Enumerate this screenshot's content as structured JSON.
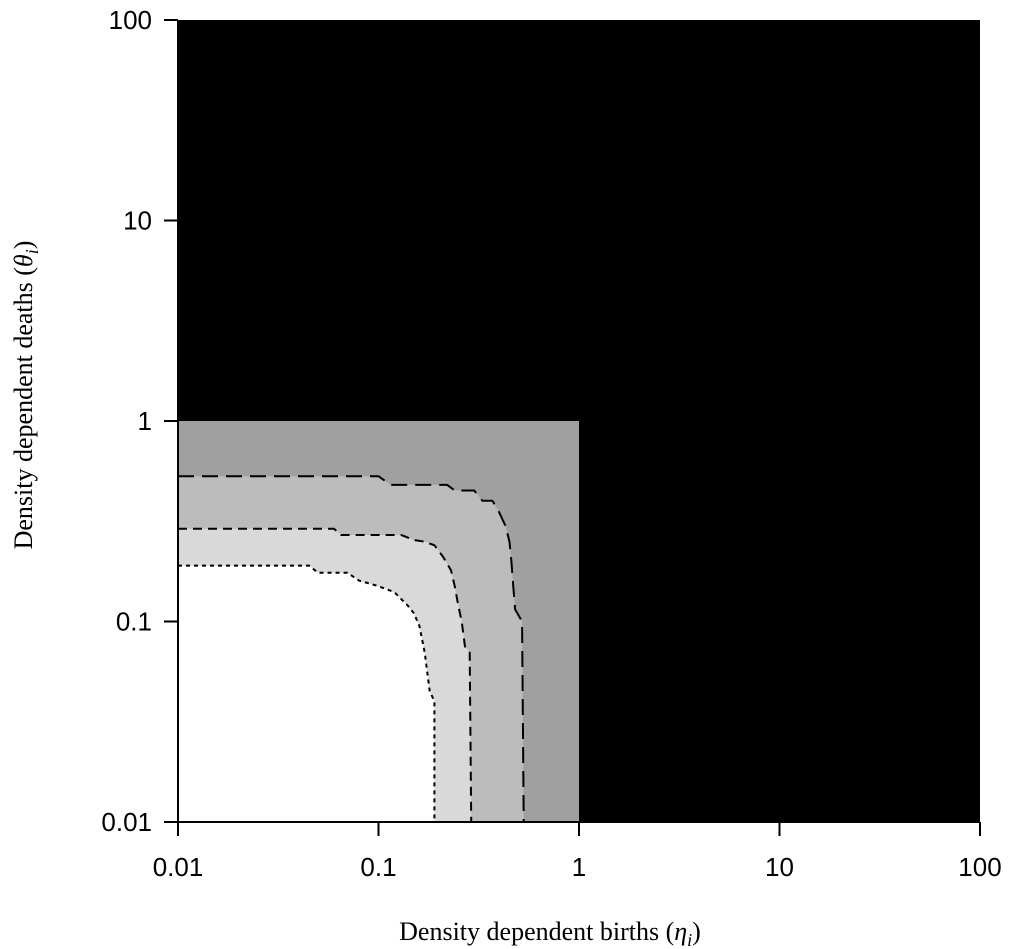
{
  "chart_data": {
    "type": "heatmap",
    "title": "",
    "xlabel": "Density dependent births (",
    "xlabel_symbol": "η",
    "xlabel_subscript": "i",
    "xlabel_close": ")",
    "ylabel": "Density dependent deaths (",
    "ylabel_symbol": "θ",
    "ylabel_subscript": "i",
    "ylabel_close": ")",
    "x_scale": "log",
    "y_scale": "log",
    "xlim": [
      0.01,
      100
    ],
    "ylim": [
      0.01,
      100
    ],
    "x_ticks": [
      0.01,
      0.1,
      1,
      10,
      100
    ],
    "x_tick_labels": [
      "0.01",
      "0.1",
      "1",
      "10",
      "100"
    ],
    "y_ticks": [
      0.01,
      0.1,
      1,
      10,
      100
    ],
    "y_tick_labels": [
      "0.01",
      "0.1",
      "1",
      "10",
      "100"
    ],
    "grid": false,
    "legend": "none",
    "regions": [
      {
        "fill": "#000000",
        "description": "eta > 1 or theta > 1"
      },
      {
        "fill": "#a0a0a0",
        "bounds": {
          "x": [
            0.01,
            1
          ],
          "y": [
            0.01,
            1
          ]
        }
      },
      {
        "fill": "#bcbcbc",
        "bounded_by": "dashed"
      },
      {
        "fill": "#d9d9d9",
        "bounded_by": "medium_dashed"
      },
      {
        "fill": "#ffffff",
        "bounded_by": "dotted"
      }
    ],
    "contours": [
      {
        "style": "dashed",
        "points": [
          [
            0.01,
            0.53
          ],
          [
            0.1,
            0.53
          ],
          [
            0.115,
            0.48
          ],
          [
            0.22,
            0.48
          ],
          [
            0.24,
            0.45
          ],
          [
            0.3,
            0.45
          ],
          [
            0.33,
            0.4
          ],
          [
            0.37,
            0.4
          ],
          [
            0.4,
            0.35
          ],
          [
            0.43,
            0.3
          ],
          [
            0.45,
            0.25
          ],
          [
            0.46,
            0.2
          ],
          [
            0.47,
            0.15
          ],
          [
            0.48,
            0.115
          ],
          [
            0.52,
            0.1
          ],
          [
            0.53,
            0.01
          ]
        ]
      },
      {
        "style": "medium_dashed",
        "points": [
          [
            0.01,
            0.29
          ],
          [
            0.06,
            0.29
          ],
          [
            0.065,
            0.27
          ],
          [
            0.13,
            0.27
          ],
          [
            0.15,
            0.255
          ],
          [
            0.17,
            0.25
          ],
          [
            0.19,
            0.24
          ],
          [
            0.21,
            0.21
          ],
          [
            0.23,
            0.18
          ],
          [
            0.24,
            0.15
          ],
          [
            0.25,
            0.12
          ],
          [
            0.26,
            0.1
          ],
          [
            0.27,
            0.075
          ],
          [
            0.285,
            0.07
          ],
          [
            0.29,
            0.01
          ]
        ]
      },
      {
        "style": "dotted",
        "points": [
          [
            0.01,
            0.19
          ],
          [
            0.045,
            0.19
          ],
          [
            0.05,
            0.175
          ],
          [
            0.07,
            0.175
          ],
          [
            0.08,
            0.16
          ],
          [
            0.1,
            0.15
          ],
          [
            0.12,
            0.14
          ],
          [
            0.14,
            0.12
          ],
          [
            0.15,
            0.11
          ],
          [
            0.16,
            0.095
          ],
          [
            0.17,
            0.07
          ],
          [
            0.18,
            0.045
          ],
          [
            0.19,
            0.04
          ],
          [
            0.19,
            0.01
          ]
        ]
      }
    ]
  }
}
